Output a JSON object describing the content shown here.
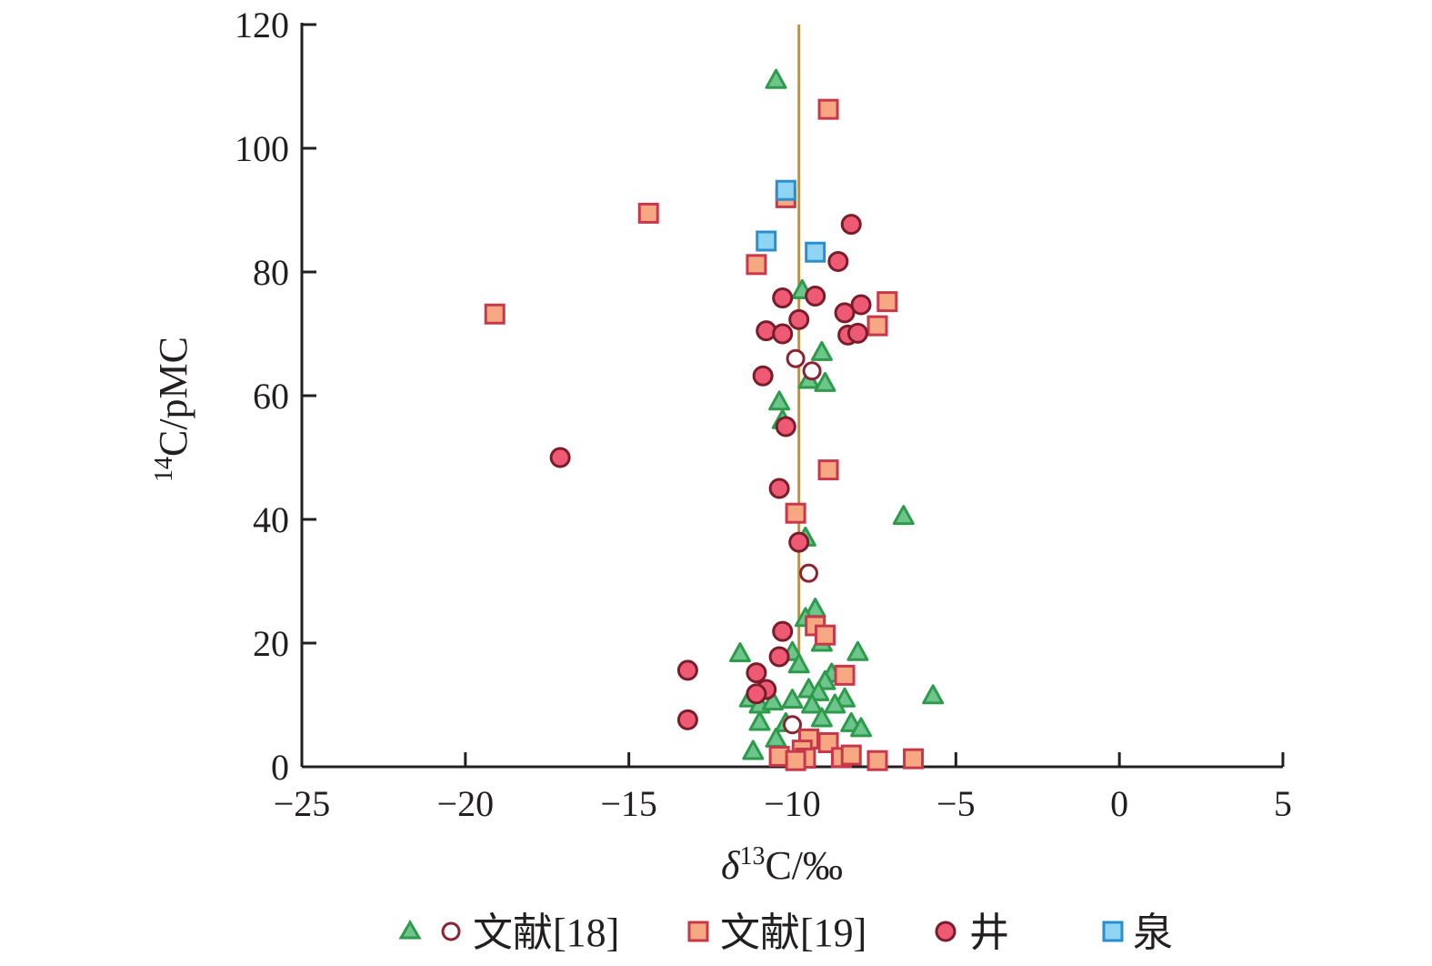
{
  "chart_data": {
    "type": "scatter",
    "title": "",
    "xlabel": {
      "prefix": "δ",
      "sup": "13",
      "suffix": "C/‰"
    },
    "ylabel": {
      "sup": "14",
      "suffix": "C/pMC"
    },
    "xlim": [
      -25,
      5
    ],
    "ylim": [
      0,
      120
    ],
    "x_ticks": [
      -25,
      -20,
      -15,
      -10,
      -5,
      0,
      5
    ],
    "y_ticks": [
      0,
      20,
      40,
      60,
      80,
      100,
      120
    ],
    "x_tick_labels": [
      "−25",
      "−20",
      "−15",
      "−10",
      "−5",
      "0",
      "5"
    ],
    "y_tick_labels": [
      "0",
      "20",
      "40",
      "60",
      "80",
      "100",
      "120"
    ],
    "grid": false,
    "legend_position": "bottom",
    "reference_line": {
      "x": -9.8,
      "color": "#c8922a"
    },
    "legend": [
      {
        "label": "文献[18]",
        "markers": [
          "triangle",
          "open-circle"
        ]
      },
      {
        "label": "文献[19]",
        "markers": [
          "square-orange"
        ]
      },
      {
        "label": "井",
        "markers": [
          "circle-red"
        ]
      },
      {
        "label": "泉",
        "markers": [
          "square-blue"
        ]
      }
    ],
    "series": [
      {
        "legend": "文献[18]",
        "marker": "triangle",
        "fill": "#6cc58a",
        "stroke": "#2e9a4b",
        "points": [
          [
            -10.5,
            111
          ],
          [
            -9.7,
            77
          ],
          [
            -9.1,
            67
          ],
          [
            -9.5,
            62.5
          ],
          [
            -9.0,
            62
          ],
          [
            -10.4,
            59
          ],
          [
            -10.3,
            56
          ],
          [
            -9.6,
            37
          ],
          [
            -6.6,
            40.5
          ],
          [
            -9.3,
            25.5
          ],
          [
            -9.6,
            24
          ],
          [
            -9.1,
            20
          ],
          [
            -10.0,
            18.5
          ],
          [
            -11.6,
            18.3
          ],
          [
            -8.0,
            18.5
          ],
          [
            -9.8,
            16.5
          ],
          [
            -8.8,
            15
          ],
          [
            -9.0,
            13.8
          ],
          [
            -9.5,
            12.5
          ],
          [
            -9.2,
            12
          ],
          [
            -8.4,
            11
          ],
          [
            -11.3,
            11
          ],
          [
            -11.0,
            10
          ],
          [
            -10.6,
            10.5
          ],
          [
            -10.0,
            10.8
          ],
          [
            -9.4,
            10
          ],
          [
            -8.7,
            10
          ],
          [
            -5.7,
            11.5
          ],
          [
            -9.1,
            7.8
          ],
          [
            -11.0,
            7.2
          ],
          [
            -10.2,
            7
          ],
          [
            -8.2,
            7
          ],
          [
            -7.9,
            6.2
          ],
          [
            -10.5,
            4.5
          ],
          [
            -11.2,
            2.5
          ]
        ]
      },
      {
        "legend": "文献[18]",
        "marker": "open-circle",
        "fill": "#ffffff",
        "stroke": "#8b2332",
        "points": [
          [
            -9.9,
            66
          ],
          [
            -9.4,
            64
          ],
          [
            -9.5,
            31.3
          ],
          [
            -10.0,
            6.8
          ]
        ]
      },
      {
        "legend": "文献[19]",
        "marker": "square",
        "fill": "#f5a882",
        "stroke": "#c8384a",
        "points": [
          [
            -8.9,
            106.3
          ],
          [
            -10.2,
            92
          ],
          [
            -14.4,
            89.5
          ],
          [
            -11.1,
            81.2
          ],
          [
            -19.1,
            73.2
          ],
          [
            -7.1,
            75.2
          ],
          [
            -7.4,
            71.3
          ],
          [
            -8.9,
            48
          ],
          [
            -9.9,
            41
          ],
          [
            -9.3,
            22.8
          ],
          [
            -9.0,
            21.3
          ],
          [
            -8.4,
            14.8
          ],
          [
            -9.5,
            4.5
          ],
          [
            -8.9,
            3.9
          ],
          [
            -9.7,
            2.7
          ],
          [
            -10.4,
            1.7
          ],
          [
            -9.6,
            1.4
          ],
          [
            -9.9,
            1.0
          ],
          [
            -8.5,
            1.5
          ],
          [
            -8.2,
            1.9
          ],
          [
            -7.4,
            1.0
          ],
          [
            -6.3,
            1.3
          ]
        ]
      },
      {
        "legend": "井",
        "marker": "circle",
        "fill": "#ee5a73",
        "stroke": "#7a1c2a",
        "points": [
          [
            -8.2,
            87.7
          ],
          [
            -8.6,
            81.7
          ],
          [
            -10.3,
            75.8
          ],
          [
            -9.3,
            76.1
          ],
          [
            -7.9,
            74.7
          ],
          [
            -8.4,
            73.4
          ],
          [
            -9.8,
            72.3
          ],
          [
            -10.8,
            70.5
          ],
          [
            -10.3,
            70
          ],
          [
            -8.3,
            69.8
          ],
          [
            -8.0,
            70.1
          ],
          [
            -10.9,
            63.2
          ],
          [
            -10.2,
            55
          ],
          [
            -17.1,
            50
          ],
          [
            -10.4,
            45
          ],
          [
            -9.8,
            36.3
          ],
          [
            -10.3,
            21.9
          ],
          [
            -10.4,
            17.8
          ],
          [
            -13.2,
            15.6
          ],
          [
            -11.1,
            15.2
          ],
          [
            -10.8,
            12.5
          ],
          [
            -11.1,
            11.8
          ],
          [
            -13.2,
            7.6
          ]
        ]
      },
      {
        "legend": "泉",
        "marker": "square",
        "fill": "#8fd4f2",
        "stroke": "#2a8fcc",
        "points": [
          [
            -10.2,
            93.2
          ],
          [
            -10.8,
            85
          ],
          [
            -9.3,
            83.2
          ]
        ]
      }
    ]
  }
}
